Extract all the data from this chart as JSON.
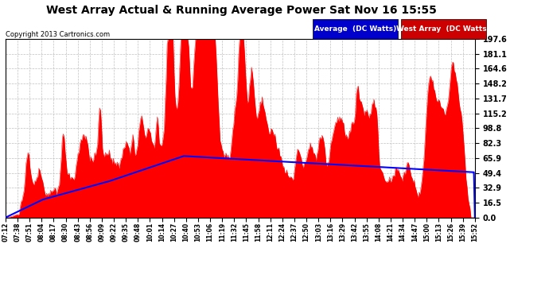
{
  "title": "West Array Actual & Running Average Power Sat Nov 16 15:55",
  "copyright": "Copyright 2013 Cartronics.com",
  "ylabel_right_ticks": [
    0.0,
    16.5,
    32.9,
    49.4,
    65.9,
    82.3,
    98.8,
    115.2,
    131.7,
    148.2,
    164.6,
    181.1,
    197.6
  ],
  "ylim": [
    0.0,
    197.6
  ],
  "bg_color": "#ffffff",
  "grid_color": "#c0c0c0",
  "bar_color": "#ff0000",
  "avg_color": "#0000ff",
  "xtick_labels": [
    "07:12",
    "07:38",
    "07:51",
    "08:04",
    "08:17",
    "08:30",
    "08:43",
    "08:56",
    "09:09",
    "09:22",
    "09:35",
    "09:48",
    "10:01",
    "10:14",
    "10:27",
    "10:40",
    "10:53",
    "11:06",
    "11:19",
    "11:32",
    "11:45",
    "11:58",
    "12:11",
    "12:24",
    "12:37",
    "12:50",
    "13:03",
    "13:16",
    "13:29",
    "13:42",
    "13:55",
    "14:08",
    "14:21",
    "14:34",
    "14:47",
    "15:00",
    "15:13",
    "15:26",
    "15:39",
    "15:52"
  ]
}
